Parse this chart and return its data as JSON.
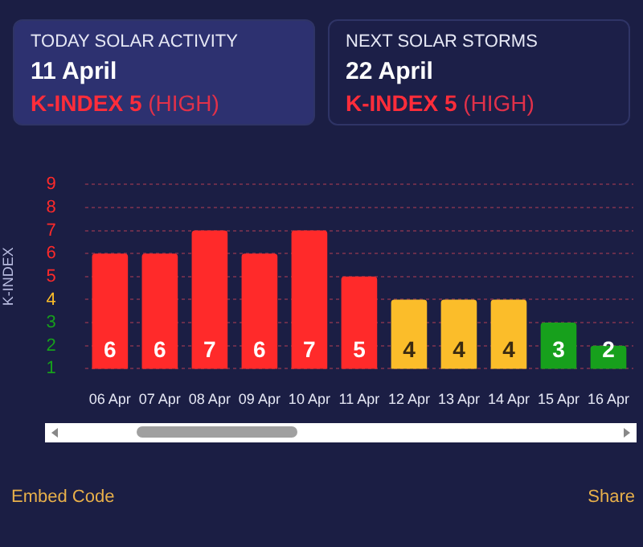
{
  "chart_data": {
    "type": "bar",
    "ylabel": "K-INDEX",
    "categories": [
      "06 Apr",
      "07 Apr",
      "08 Apr",
      "09 Apr",
      "10 Apr",
      "11 Apr",
      "12 Apr",
      "13 Apr",
      "14 Apr",
      "15 Apr",
      "16 Apr"
    ],
    "values": [
      6,
      6,
      7,
      6,
      7,
      5,
      4,
      4,
      4,
      3,
      2
    ],
    "colors": [
      "#ff2a2a",
      "#ff2a2a",
      "#ff2a2a",
      "#ff2a2a",
      "#ff2a2a",
      "#ff2a2a",
      "#fbbd2a",
      "#fbbd2a",
      "#fbbd2a",
      "#17a01c",
      "#17a01c"
    ],
    "ylim": [
      1,
      9
    ],
    "yticks": [
      1,
      2,
      3,
      4,
      5,
      6,
      7,
      8,
      9
    ],
    "grid": "y",
    "data_labels": true,
    "annotations": [
      "TODAY SOLAR ACTIVITY",
      "11 April",
      "K-INDEX 5",
      "(HIGH)",
      "NEXT SOLAR STORMS",
      "22 April",
      "K-INDEX 5",
      "(HIGH)",
      "Embed Code",
      "Share"
    ]
  }
}
